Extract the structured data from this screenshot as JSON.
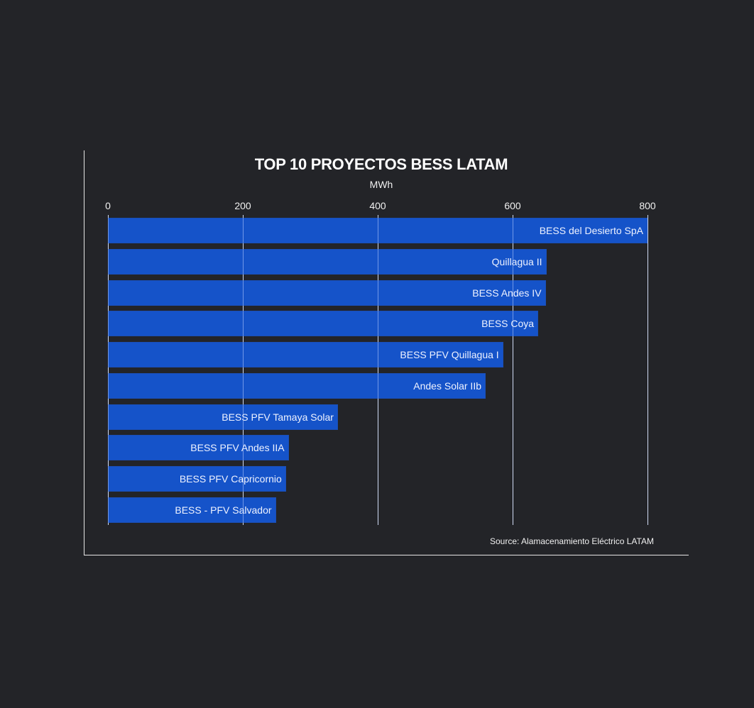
{
  "chart_data": {
    "type": "bar",
    "orientation": "horizontal",
    "title": "TOP 10 PROYECTOS BESS LATAM",
    "xlabel": "MWh",
    "ylabel": "",
    "xlim": [
      0,
      800
    ],
    "x_ticks": [
      "0",
      "200",
      "400",
      "600",
      "800"
    ],
    "grid": true,
    "categories": [
      "BESS del Desierto SpA",
      "Quillagua II",
      "BESS Andes IV",
      "BESS Coya",
      "BESS PFV Quillagua I",
      "Andes Solar IIb",
      "BESS PFV Tamaya Solar",
      "BESS PFV Andes IIA",
      "BESS PFV Capricornio",
      "BESS - PFV Salvador"
    ],
    "values": [
      800,
      650,
      649,
      638,
      586,
      560,
      341,
      268,
      264,
      249
    ],
    "bar_color": "#1553c9",
    "source": "Source: Alamacenamiento Eléctrico LATAM"
  },
  "colors": {
    "background": "#232428",
    "bar": "#1553c9",
    "text": "#ffffff"
  }
}
